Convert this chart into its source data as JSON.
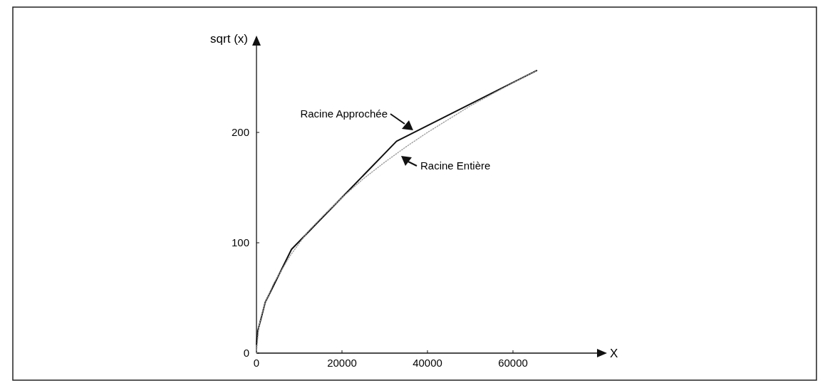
{
  "chart_data": {
    "type": "line",
    "xlabel": "X",
    "ylabel": "sqrt (x)",
    "xlim": [
      0,
      80000
    ],
    "ylim": [
      0,
      280
    ],
    "xticks": [
      0,
      20000,
      40000,
      60000
    ],
    "yticks": [
      0,
      100,
      200
    ],
    "grid": false,
    "marker": "none",
    "series": [
      {
        "color": "#111111",
        "line_style": "solid",
        "x": [
          0,
          300,
          2048,
          8192,
          32768,
          65536
        ],
        "values": [
          8,
          20,
          46,
          94,
          192,
          256
        ]
      },
      {
        "color": "#999999",
        "line_style": "dotted",
        "x": [
          0,
          500,
          1000,
          2000,
          4000,
          8000,
          12000,
          16000,
          20000,
          25000,
          30000,
          35000,
          40000,
          50000,
          60000,
          65536
        ],
        "values": [
          0,
          22,
          32,
          45,
          63,
          89,
          110,
          126,
          141,
          158,
          173,
          187,
          200,
          224,
          245,
          256
        ]
      }
    ],
    "annotations": [
      {
        "text": "Racine Approchée",
        "x": 37000,
        "y": 200
      },
      {
        "text": "Racine Entière",
        "x": 33500,
        "y": 180
      }
    ]
  }
}
